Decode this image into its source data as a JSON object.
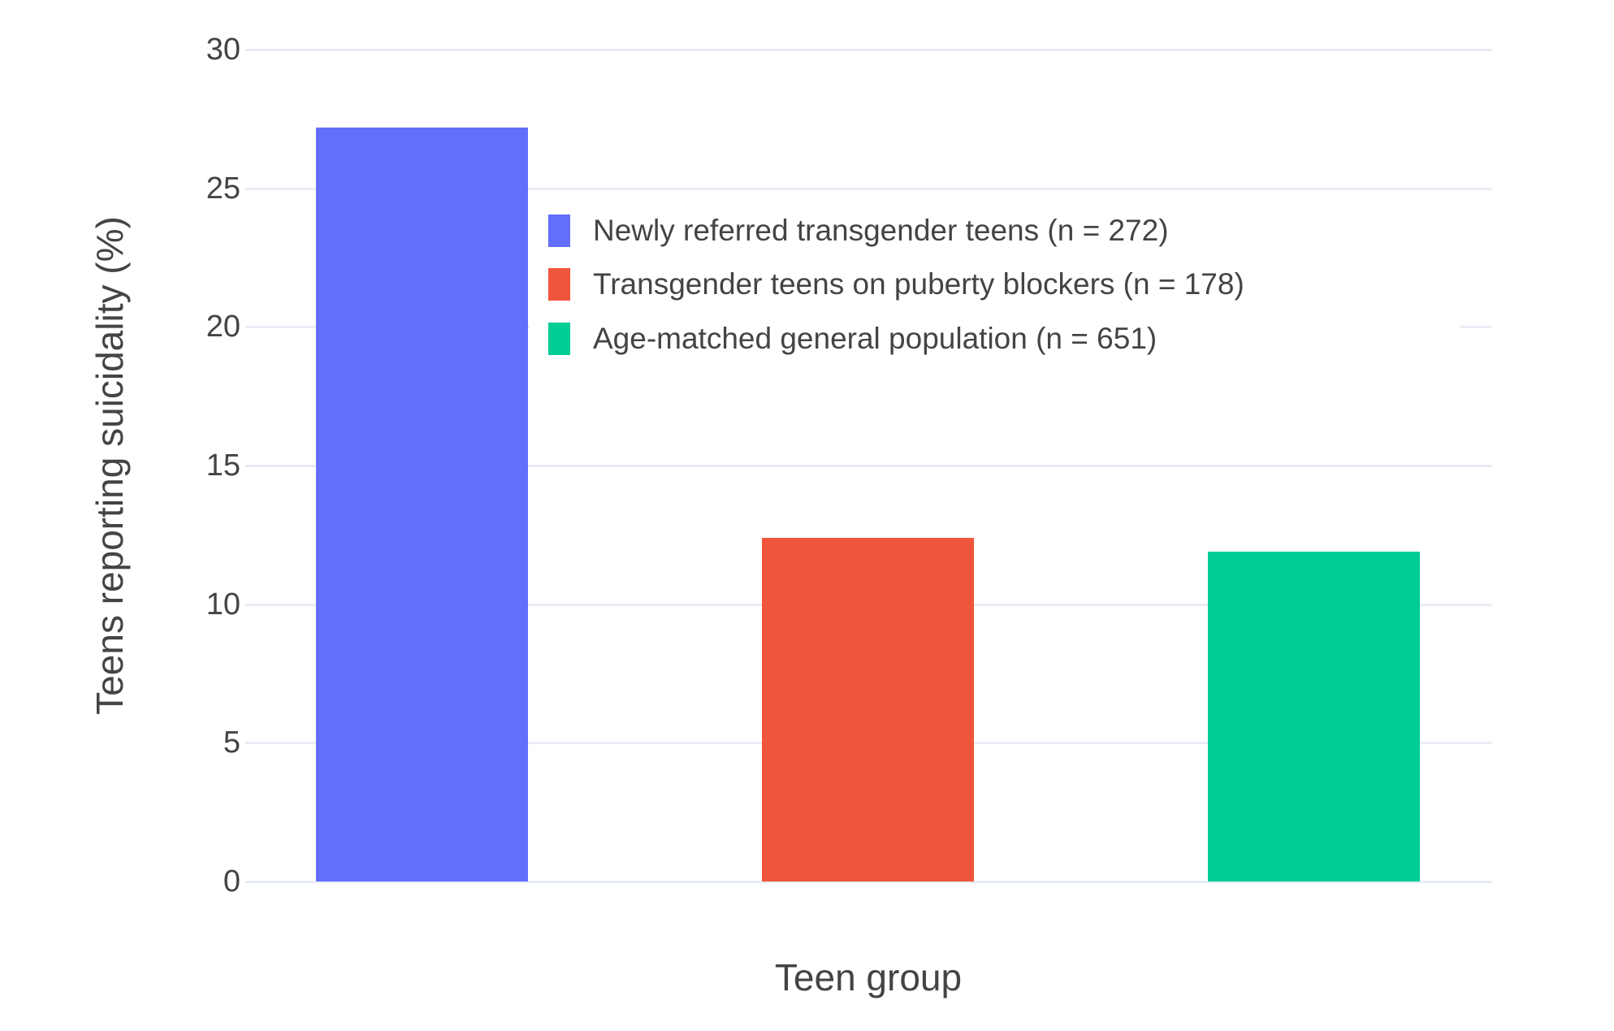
{
  "chart_data": {
    "type": "bar",
    "title": "",
    "xlabel": "Teen group",
    "ylabel": "Teens reporting suicidality (%)",
    "ylim": [
      0,
      30
    ],
    "yticks": [
      0,
      5,
      10,
      15,
      20,
      25,
      30
    ],
    "grid": true,
    "legend_position": "inside-top-center",
    "categories": [
      "Newly referred transgender teens (n = 272)",
      "Transgender teens on puberty blockers (n = 178)",
      "Age-matched general population (n = 651)"
    ],
    "values": [
      27.2,
      12.4,
      11.9
    ],
    "bar_colors": [
      "#636EFA",
      "#EF553B",
      "#00CC96"
    ],
    "series": [
      {
        "name": "Newly referred transgender teens (n = 272)",
        "value": 27.2,
        "color": "#636EFA"
      },
      {
        "name": "Transgender teens on puberty blockers (n = 178)",
        "value": 12.4,
        "color": "#EF553B"
      },
      {
        "name": "Age-matched general population (n = 651)",
        "value": 11.9,
        "color": "#00CC96"
      }
    ]
  },
  "colors": {
    "background": "#FFFFFF",
    "grid": "#E8EDF6",
    "axis_text": "#444444",
    "legend_background": "#FFFFFF"
  }
}
